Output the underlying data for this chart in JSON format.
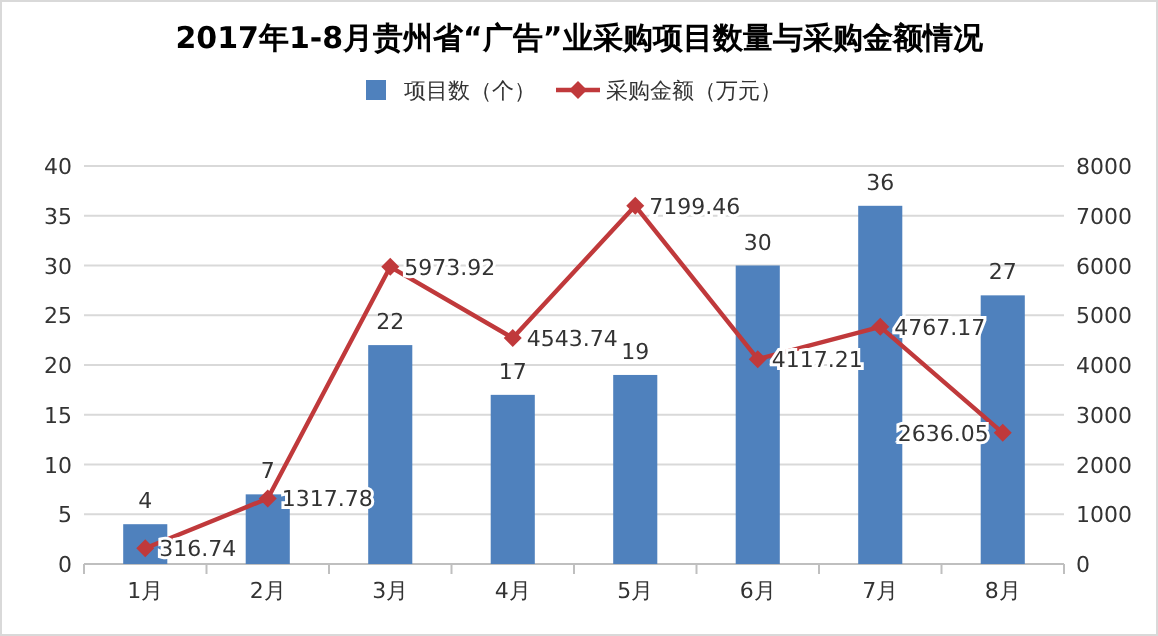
{
  "chart_data": {
    "type": "bar",
    "title": "2017年1-8月贵州省“广告”业采购项目数量与采购金额情况",
    "categories": [
      "1月",
      "2月",
      "3月",
      "4月",
      "5月",
      "6月",
      "7月",
      "8月"
    ],
    "series": [
      {
        "name": "项目数（个）",
        "color": "#4f81bd",
        "values": [
          4,
          7,
          22,
          17,
          19,
          30,
          36,
          27
        ]
      },
      {
        "name": "采购金额（万元）",
        "type": "line",
        "axis": "y2",
        "color": "#c0393b",
        "marker": "diamond",
        "values": [
          316.74,
          1317.78,
          5973.92,
          4543.74,
          7199.46,
          4117.21,
          4767.17,
          2636.05
        ]
      }
    ],
    "ylim": [
      0,
      40
    ],
    "yticks": [
      0,
      5,
      10,
      15,
      20,
      25,
      30,
      35,
      40
    ],
    "y2lim": [
      0,
      8000
    ],
    "y2ticks": [
      0,
      1000,
      2000,
      3000,
      4000,
      5000,
      6000,
      7000,
      8000
    ],
    "grid": "y",
    "legend": "top",
    "data_labels": true
  }
}
